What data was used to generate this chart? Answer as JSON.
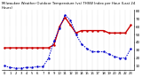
{
  "title": "Milwaukee Weather Outdoor Temperature (vs) THSW Index per Hour (Last 24 Hours)",
  "temp_color": "#cc0000",
  "thsw_color": "#0000cc",
  "background_color": "#ffffff",
  "hours": [
    0,
    1,
    2,
    3,
    4,
    5,
    6,
    7,
    8,
    9,
    10,
    11,
    12,
    13,
    14,
    15,
    16,
    17,
    18,
    19,
    20,
    21,
    22,
    23
  ],
  "temp_values": [
    33,
    33,
    33,
    33,
    33,
    33,
    33,
    33,
    33,
    37,
    60,
    72,
    62,
    52,
    55,
    55,
    55,
    55,
    55,
    52,
    52,
    52,
    52,
    62
  ],
  "thsw_values": [
    10,
    8,
    7,
    7,
    8,
    8,
    9,
    9,
    20,
    42,
    58,
    75,
    68,
    50,
    38,
    32,
    28,
    28,
    28,
    25,
    22,
    20,
    20,
    32
  ],
  "ylim": [
    5,
    82
  ],
  "ytick_values": [
    10,
    20,
    30,
    40,
    50,
    60,
    70,
    80
  ],
  "ytick_labels": [
    "10",
    "20",
    "30",
    "40",
    "50",
    "60",
    "70",
    "80"
  ],
  "grid_color": "#999999",
  "temp_lw": 1.0,
  "thsw_lw": 0.7,
  "title_fontsize": 2.8,
  "tick_fontsize": 3.0,
  "marker_size": 1.5
}
